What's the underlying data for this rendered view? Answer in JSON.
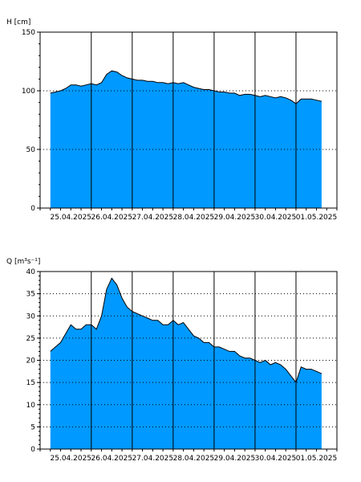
{
  "chart_data": [
    {
      "type": "area",
      "ylabel": "H [cm]",
      "ylim": [
        0,
        150
      ],
      "yticks": [
        0,
        50,
        100,
        150
      ],
      "xlim": [
        "2025-04-24T18:00",
        "2025-05-02T00:00"
      ],
      "x_tick_labels": [
        "25.04.2025",
        "26.04.2025",
        "27.04.2025",
        "28.04.2025",
        "29.04.2025",
        "30.04.2025",
        "01.05.2025"
      ],
      "x_tick_dates": [
        "2025-04-25T12:00",
        "2025-04-26T12:00",
        "2025-04-27T12:00",
        "2025-04-28T12:00",
        "2025-04-29T12:00",
        "2025-04-30T12:00",
        "2025-05-01T12:00"
      ],
      "day_boundaries": [
        "2025-04-26T00:00",
        "2025-04-27T00:00",
        "2025-04-28T00:00",
        "2025-04-29T00:00",
        "2025-04-30T00:00",
        "2025-05-01T00:00"
      ],
      "grid_horizontal": "dotted",
      "fill_color": "#0099FF",
      "x": [
        "2025-04-25T00:00",
        "2025-04-25T03:00",
        "2025-04-25T06:00",
        "2025-04-25T09:00",
        "2025-04-25T12:00",
        "2025-04-25T15:00",
        "2025-04-25T18:00",
        "2025-04-25T21:00",
        "2025-04-26T00:00",
        "2025-04-26T03:00",
        "2025-04-26T06:00",
        "2025-04-26T09:00",
        "2025-04-26T12:00",
        "2025-04-26T15:00",
        "2025-04-26T18:00",
        "2025-04-26T21:00",
        "2025-04-27T00:00",
        "2025-04-27T03:00",
        "2025-04-27T06:00",
        "2025-04-27T09:00",
        "2025-04-27T12:00",
        "2025-04-27T15:00",
        "2025-04-27T18:00",
        "2025-04-27T21:00",
        "2025-04-28T00:00",
        "2025-04-28T03:00",
        "2025-04-28T06:00",
        "2025-04-28T09:00",
        "2025-04-28T12:00",
        "2025-04-28T15:00",
        "2025-04-28T18:00",
        "2025-04-28T21:00",
        "2025-04-29T00:00",
        "2025-04-29T03:00",
        "2025-04-29T06:00",
        "2025-04-29T09:00",
        "2025-04-29T12:00",
        "2025-04-29T15:00",
        "2025-04-29T18:00",
        "2025-04-29T21:00",
        "2025-04-30T00:00",
        "2025-04-30T03:00",
        "2025-04-30T06:00",
        "2025-04-30T09:00",
        "2025-04-30T12:00",
        "2025-04-30T15:00",
        "2025-04-30T18:00",
        "2025-04-30T21:00",
        "2025-05-01T00:00",
        "2025-05-01T03:00",
        "2025-05-01T06:00",
        "2025-05-01T09:00",
        "2025-05-01T12:00",
        "2025-05-01T15:00"
      ],
      "values": [
        98,
        99,
        100,
        102,
        105,
        105,
        104,
        105,
        106,
        105,
        107,
        114,
        117,
        116,
        113,
        111,
        110,
        109,
        109,
        108,
        108,
        107,
        107,
        106,
        107,
        106,
        107,
        105,
        103,
        102,
        101,
        101,
        100,
        99,
        99,
        98,
        98,
        96,
        97,
        97,
        96,
        95,
        96,
        95,
        94,
        95,
        94,
        92,
        89,
        93,
        93,
        93,
        92,
        91
      ]
    },
    {
      "type": "area",
      "ylabel": "Q [m³s⁻¹]",
      "ylim": [
        0,
        40
      ],
      "yticks": [
        0,
        5,
        10,
        15,
        20,
        25,
        30,
        35,
        40
      ],
      "xlim": [
        "2025-04-24T18:00",
        "2025-05-02T00:00"
      ],
      "x_tick_labels": [
        "25.04.2025",
        "26.04.2025",
        "27.04.2025",
        "28.04.2025",
        "29.04.2025",
        "30.04.2025",
        "01.05.2025"
      ],
      "x_tick_dates": [
        "2025-04-25T12:00",
        "2025-04-26T12:00",
        "2025-04-27T12:00",
        "2025-04-28T12:00",
        "2025-04-29T12:00",
        "2025-04-30T12:00",
        "2025-05-01T12:00"
      ],
      "day_boundaries": [
        "2025-04-26T00:00",
        "2025-04-27T00:00",
        "2025-04-28T00:00",
        "2025-04-29T00:00",
        "2025-04-30T00:00",
        "2025-05-01T00:00"
      ],
      "grid_horizontal": "dotted",
      "fill_color": "#0099FF",
      "x": [
        "2025-04-25T00:00",
        "2025-04-25T03:00",
        "2025-04-25T06:00",
        "2025-04-25T09:00",
        "2025-04-25T12:00",
        "2025-04-25T15:00",
        "2025-04-25T18:00",
        "2025-04-25T21:00",
        "2025-04-26T00:00",
        "2025-04-26T03:00",
        "2025-04-26T06:00",
        "2025-04-26T09:00",
        "2025-04-26T12:00",
        "2025-04-26T15:00",
        "2025-04-26T18:00",
        "2025-04-26T21:00",
        "2025-04-27T00:00",
        "2025-04-27T03:00",
        "2025-04-27T06:00",
        "2025-04-27T09:00",
        "2025-04-27T12:00",
        "2025-04-27T15:00",
        "2025-04-27T18:00",
        "2025-04-27T21:00",
        "2025-04-28T00:00",
        "2025-04-28T03:00",
        "2025-04-28T06:00",
        "2025-04-28T09:00",
        "2025-04-28T12:00",
        "2025-04-28T15:00",
        "2025-04-28T18:00",
        "2025-04-28T21:00",
        "2025-04-29T00:00",
        "2025-04-29T03:00",
        "2025-04-29T06:00",
        "2025-04-29T09:00",
        "2025-04-29T12:00",
        "2025-04-29T15:00",
        "2025-04-29T18:00",
        "2025-04-29T21:00",
        "2025-04-30T00:00",
        "2025-04-30T03:00",
        "2025-04-30T06:00",
        "2025-04-30T09:00",
        "2025-04-30T12:00",
        "2025-04-30T15:00",
        "2025-04-30T18:00",
        "2025-04-30T21:00",
        "2025-05-01T00:00",
        "2025-05-01T03:00",
        "2025-05-01T06:00",
        "2025-05-01T09:00",
        "2025-05-01T12:00",
        "2025-05-01T15:00"
      ],
      "values": [
        22,
        23,
        24,
        26,
        28,
        27,
        27,
        28,
        28,
        27,
        30,
        36,
        38.5,
        37,
        34,
        32,
        31,
        30.5,
        30,
        29.5,
        29,
        29,
        28,
        28,
        29,
        28,
        28.5,
        27,
        25.5,
        25,
        24,
        24,
        23,
        23,
        22.5,
        22,
        22,
        21,
        20.5,
        20.5,
        20,
        19.5,
        20,
        19,
        19.5,
        19,
        18,
        16.5,
        15,
        18.5,
        18,
        18,
        17.5,
        17
      ]
    }
  ]
}
